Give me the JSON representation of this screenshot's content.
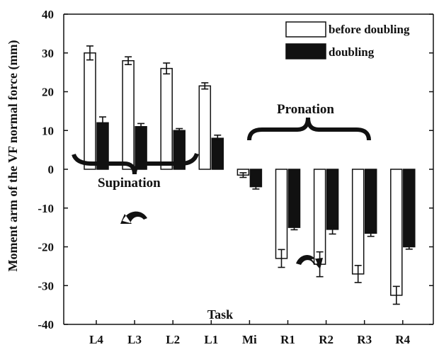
{
  "chart_data": {
    "type": "bar",
    "title": "",
    "xlabel": "Task",
    "ylabel": "Moment arm of the VF normal force (mm)",
    "ylim": [
      -40,
      40
    ],
    "yticks": [
      40,
      30,
      20,
      10,
      0,
      -10,
      -20,
      -30,
      -40
    ],
    "categories": [
      "L4",
      "L3",
      "L2",
      "L1",
      "Mi",
      "R1",
      "R2",
      "R3",
      "R4"
    ],
    "series": [
      {
        "name": "before doubling",
        "color": "#ffffff",
        "values": [
          30,
          28,
          26,
          21.5,
          -1.5,
          -23,
          -24.5,
          -27,
          -32.5
        ],
        "errors": [
          1.8,
          1.0,
          1.4,
          0.8,
          0.6,
          2.3,
          3.2,
          2.2,
          2.3
        ]
      },
      {
        "name": "doubling",
        "color": "#111111",
        "values": [
          12,
          11,
          10,
          8,
          -4.5,
          -15,
          -15.5,
          -16.5,
          -20
        ],
        "errors": [
          1.5,
          0.8,
          0.5,
          0.8,
          0.6,
          0.6,
          1.2,
          0.8,
          0.6
        ]
      }
    ],
    "legend_position": "top-right",
    "grid": false,
    "annotations": {
      "supination": "Supination",
      "pronation": "Pronation"
    }
  }
}
